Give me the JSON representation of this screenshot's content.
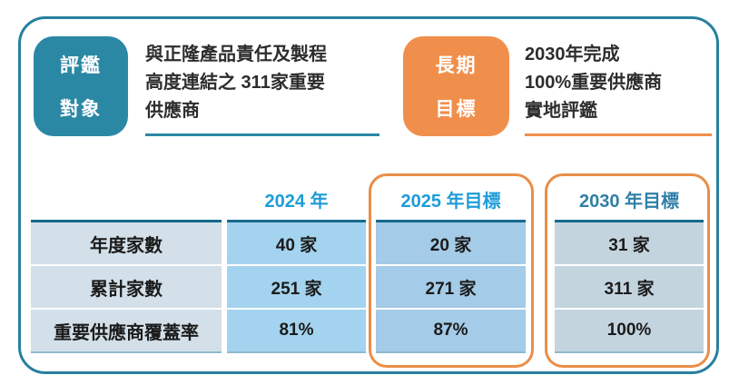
{
  "colors": {
    "teal": "#2b88a5",
    "orange": "#f08f4c",
    "orange-outline": "#e98e49",
    "frame-teal": "#27809e",
    "header-blue": "#1e9cd8",
    "header-teal": "#2f7fa6",
    "table-border": "#176a8c",
    "col-label": "#d3e0e9",
    "col-2024": "#a3d3ee",
    "col-2025": "#a4cbe7",
    "col-2030": "#c4d4df"
  },
  "callouts": [
    {
      "badge_lines": [
        "評鑑",
        "對象"
      ],
      "text_lines": [
        "與正隆產品責任及製程",
        "高度連結之 311家重要",
        "供應商"
      ]
    },
    {
      "badge_lines": [
        "長期",
        "目標"
      ],
      "text_lines": [
        "2030年完成",
        "100%重要供應商",
        "實地評鑑"
      ]
    }
  ],
  "table": {
    "column_headers": [
      "2024 年",
      "2025 年目標",
      "2030 年目標"
    ],
    "rows": [
      {
        "label": "年度家數",
        "values": [
          "40 家",
          "20 家",
          "31 家"
        ]
      },
      {
        "label": "累計家數",
        "values": [
          "251 家",
          "271 家",
          "311 家"
        ]
      },
      {
        "label": "重要供應商覆蓋率",
        "values": [
          "81%",
          "87%",
          "100%"
        ]
      }
    ]
  }
}
